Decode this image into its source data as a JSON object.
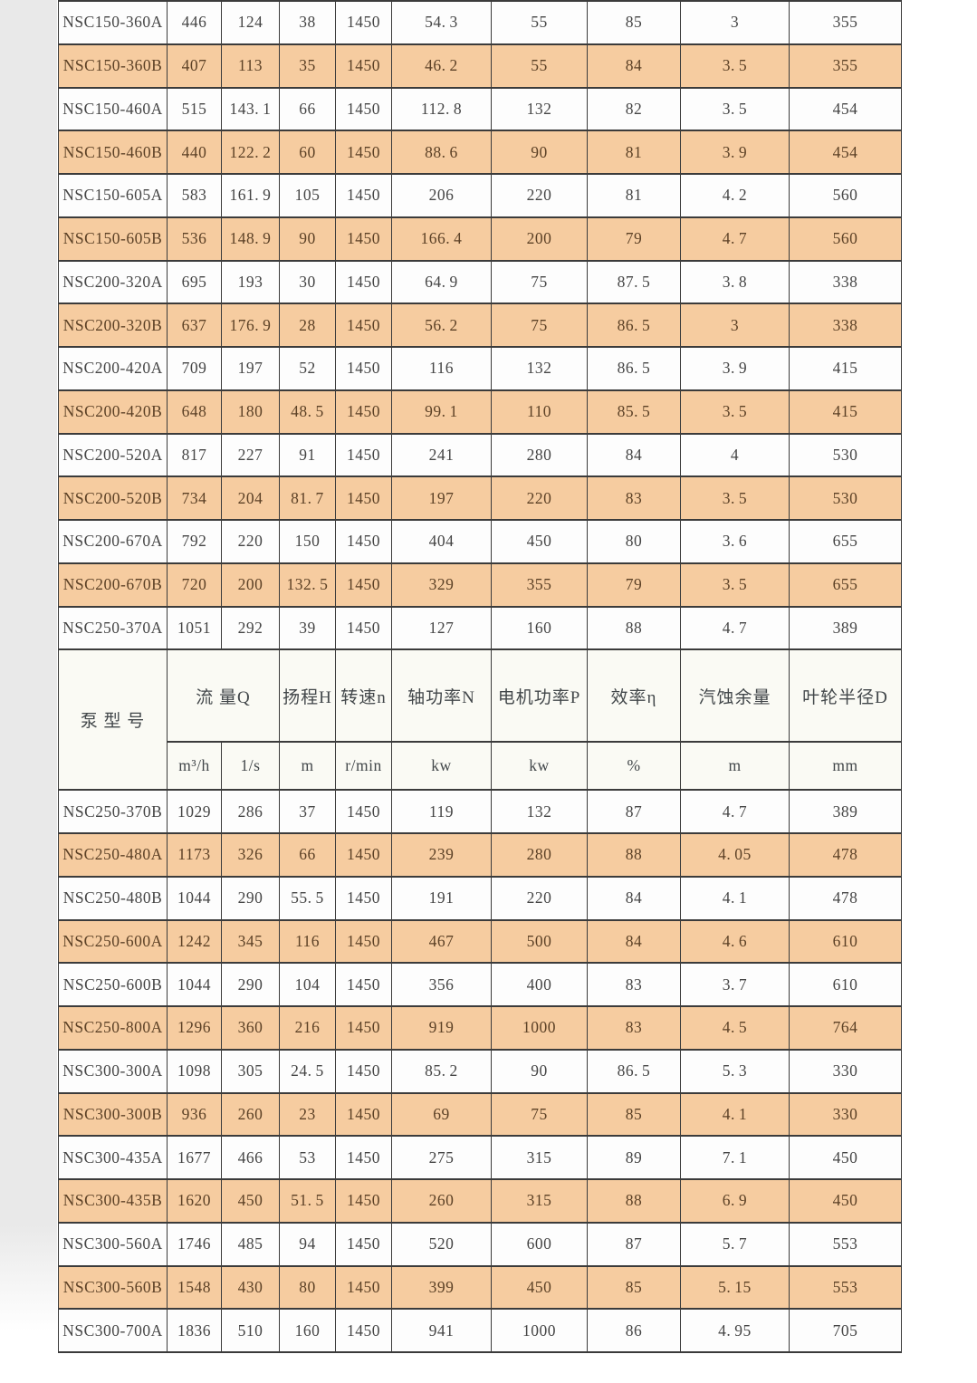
{
  "page": {
    "background_color": "#ffffff",
    "left_margin_shade_color": "#e9e9e9"
  },
  "table": {
    "border_color": "#3b3b3b",
    "shaded_row_color": "#f6cca0",
    "plain_row_color": "#fdfdfd",
    "header_bg_color": "#fafaf4",
    "plain_text_color": "#454545",
    "shaded_text_color": "#5c4126",
    "header": {
      "model": "泵 型 号",
      "flow": "流 量Q",
      "head": "扬程H",
      "speed": "转速n",
      "shaft_power": "轴功率N",
      "motor_power": "电机功率P",
      "efficiency": "效率η",
      "npsh": "汽蚀余量",
      "impeller": "叶轮半径D",
      "units": [
        "m³/h",
        "1/s",
        "m",
        "r/min",
        "kw",
        "kw",
        "%",
        "m",
        "mm"
      ]
    },
    "rows_top": [
      {
        "model": "NSC150-360A",
        "values": [
          "446",
          "124",
          "38",
          "1450",
          "54.3",
          "55",
          "85",
          "3",
          "355"
        ],
        "shaded": false
      },
      {
        "model": "NSC150-360B",
        "values": [
          "407",
          "113",
          "35",
          "1450",
          "46.2",
          "55",
          "84",
          "3.5",
          "355"
        ],
        "shaded": true
      },
      {
        "model": "NSC150-460A",
        "values": [
          "515",
          "143.1",
          "66",
          "1450",
          "112.8",
          "132",
          "82",
          "3.5",
          "454"
        ],
        "shaded": false
      },
      {
        "model": "NSC150-460B",
        "values": [
          "440",
          "122.2",
          "60",
          "1450",
          "88.6",
          "90",
          "81",
          "3.9",
          "454"
        ],
        "shaded": true
      },
      {
        "model": "NSC150-605A",
        "values": [
          "583",
          "161.9",
          "105",
          "1450",
          "206",
          "220",
          "81",
          "4.2",
          "560"
        ],
        "shaded": false
      },
      {
        "model": "NSC150-605B",
        "values": [
          "536",
          "148.9",
          "90",
          "1450",
          "166.4",
          "200",
          "79",
          "4.7",
          "560"
        ],
        "shaded": true
      },
      {
        "model": "NSC200-320A",
        "values": [
          "695",
          "193",
          "30",
          "1450",
          "64.9",
          "75",
          "87.5",
          "3.8",
          "338"
        ],
        "shaded": false
      },
      {
        "model": "NSC200-320B",
        "values": [
          "637",
          "176.9",
          "28",
          "1450",
          "56.2",
          "75",
          "86.5",
          "3",
          "338"
        ],
        "shaded": true
      },
      {
        "model": "NSC200-420A",
        "values": [
          "709",
          "197",
          "52",
          "1450",
          "116",
          "132",
          "86.5",
          "3.9",
          "415"
        ],
        "shaded": false
      },
      {
        "model": "NSC200-420B",
        "values": [
          "648",
          "180",
          "48.5",
          "1450",
          "99.1",
          "110",
          "85.5",
          "3.5",
          "415"
        ],
        "shaded": true
      },
      {
        "model": "NSC200-520A",
        "values": [
          "817",
          "227",
          "91",
          "1450",
          "241",
          "280",
          "84",
          "4",
          "530"
        ],
        "shaded": false
      },
      {
        "model": "NSC200-520B",
        "values": [
          "734",
          "204",
          "81.7",
          "1450",
          "197",
          "220",
          "83",
          "3.5",
          "530"
        ],
        "shaded": true
      },
      {
        "model": "NSC200-670A",
        "values": [
          "792",
          "220",
          "150",
          "1450",
          "404",
          "450",
          "80",
          "3.6",
          "655"
        ],
        "shaded": false
      },
      {
        "model": "NSC200-670B",
        "values": [
          "720",
          "200",
          "132.5",
          "1450",
          "329",
          "355",
          "79",
          "3.5",
          "655"
        ],
        "shaded": true
      },
      {
        "model": "NSC250-370A",
        "values": [
          "1051",
          "292",
          "39",
          "1450",
          "127",
          "160",
          "88",
          "4.7",
          "389"
        ],
        "shaded": false
      }
    ],
    "rows_bottom": [
      {
        "model": "NSC250-370B",
        "values": [
          "1029",
          "286",
          "37",
          "1450",
          "119",
          "132",
          "87",
          "4.7",
          "389"
        ],
        "shaded": false
      },
      {
        "model": "NSC250-480A",
        "values": [
          "1173",
          "326",
          "66",
          "1450",
          "239",
          "280",
          "88",
          "4.05",
          "478"
        ],
        "shaded": true
      },
      {
        "model": "NSC250-480B",
        "values": [
          "1044",
          "290",
          "55.5",
          "1450",
          "191",
          "220",
          "84",
          "4.1",
          "478"
        ],
        "shaded": false
      },
      {
        "model": "NSC250-600A",
        "values": [
          "1242",
          "345",
          "116",
          "1450",
          "467",
          "500",
          "84",
          "4.6",
          "610"
        ],
        "shaded": true
      },
      {
        "model": "NSC250-600B",
        "values": [
          "1044",
          "290",
          "104",
          "1450",
          "356",
          "400",
          "83",
          "3.7",
          "610"
        ],
        "shaded": false
      },
      {
        "model": "NSC250-800A",
        "values": [
          "1296",
          "360",
          "216",
          "1450",
          "919",
          "1000",
          "83",
          "4.5",
          "764"
        ],
        "shaded": true
      },
      {
        "model": "NSC300-300A",
        "values": [
          "1098",
          "305",
          "24.5",
          "1450",
          "85.2",
          "90",
          "86.5",
          "5.3",
          "330"
        ],
        "shaded": false
      },
      {
        "model": "NSC300-300B",
        "values": [
          "936",
          "260",
          "23",
          "1450",
          "69",
          "75",
          "85",
          "4.1",
          "330"
        ],
        "shaded": true
      },
      {
        "model": "NSC300-435A",
        "values": [
          "1677",
          "466",
          "53",
          "1450",
          "275",
          "315",
          "89",
          "7.1",
          "450"
        ],
        "shaded": false
      },
      {
        "model": "NSC300-435B",
        "values": [
          "1620",
          "450",
          "51.5",
          "1450",
          "260",
          "315",
          "88",
          "6.9",
          "450"
        ],
        "shaded": true
      },
      {
        "model": "NSC300-560A",
        "values": [
          "1746",
          "485",
          "94",
          "1450",
          "520",
          "600",
          "87",
          "5.7",
          "553"
        ],
        "shaded": false
      },
      {
        "model": "NSC300-560B",
        "values": [
          "1548",
          "430",
          "80",
          "1450",
          "399",
          "450",
          "85",
          "5.15",
          "553"
        ],
        "shaded": true
      },
      {
        "model": "NSC300-700A",
        "values": [
          "1836",
          "510",
          "160",
          "1450",
          "941",
          "1000",
          "86",
          "4.95",
          "705"
        ],
        "shaded": false
      }
    ]
  }
}
